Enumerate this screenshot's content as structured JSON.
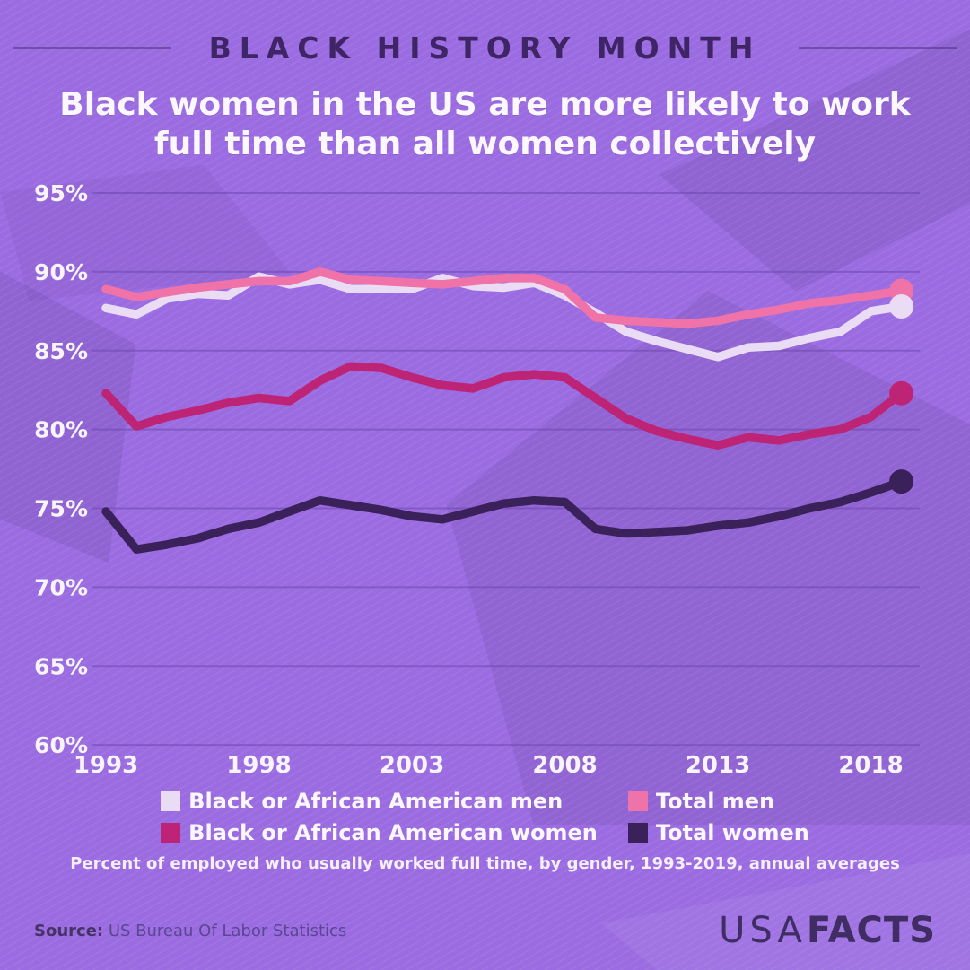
{
  "header": {
    "kicker": "BLACK HISTORY MONTH",
    "title": "Black women in the US are more likely to work full time than all women collectively"
  },
  "theme": {
    "background": "#9b6ce1",
    "ink_dark": "#3f2566",
    "text_light": "#fbf7fe",
    "gridline": "#6d48ae"
  },
  "chart_data": {
    "type": "line",
    "title": "Black women in the US are more likely to work full time than all women collectively",
    "xlabel": "",
    "ylabel": "Percent of employed who usually worked full time",
    "x": [
      1993,
      1994,
      1995,
      1996,
      1997,
      1998,
      1999,
      2000,
      2001,
      2002,
      2003,
      2004,
      2005,
      2006,
      2007,
      2008,
      2009,
      2010,
      2011,
      2012,
      2013,
      2014,
      2015,
      2016,
      2017,
      2018,
      2019
    ],
    "series": [
      {
        "name": "Black or African American men",
        "color": "#eadcf5",
        "values": [
          87.7,
          87.3,
          88.3,
          88.6,
          88.5,
          89.7,
          89.2,
          89.5,
          88.9,
          88.9,
          88.9,
          89.6,
          89.1,
          89.0,
          89.3,
          88.5,
          87.4,
          86.2,
          85.6,
          85.1,
          84.6,
          85.2,
          85.3,
          85.8,
          86.2,
          87.5,
          87.8
        ]
      },
      {
        "name": "Total men",
        "color": "#ef72a8",
        "values": [
          88.9,
          88.4,
          88.7,
          89.0,
          89.2,
          89.4,
          89.4,
          90.0,
          89.5,
          89.4,
          89.3,
          89.2,
          89.4,
          89.6,
          89.6,
          88.9,
          87.1,
          86.9,
          86.8,
          86.7,
          86.9,
          87.3,
          87.6,
          88.0,
          88.2,
          88.5,
          88.8
        ]
      },
      {
        "name": "Black or African American women",
        "color": "#bd2476",
        "values": [
          82.3,
          80.2,
          80.8,
          81.2,
          81.7,
          82.0,
          81.8,
          83.1,
          84.0,
          83.9,
          83.3,
          82.8,
          82.6,
          83.3,
          83.5,
          83.3,
          82.0,
          80.7,
          79.9,
          79.4,
          79.0,
          79.5,
          79.3,
          79.7,
          80.0,
          80.8,
          82.3
        ]
      },
      {
        "name": "Total women",
        "color": "#3b2159",
        "values": [
          74.8,
          72.4,
          72.7,
          73.1,
          73.7,
          74.1,
          74.8,
          75.5,
          75.2,
          74.9,
          74.5,
          74.3,
          74.8,
          75.3,
          75.5,
          75.4,
          73.7,
          73.4,
          73.5,
          73.6,
          73.9,
          74.1,
          74.5,
          75.0,
          75.4,
          76.0,
          76.7
        ]
      }
    ],
    "ylim": [
      60,
      95
    ],
    "yticks": [
      95,
      90,
      85,
      80,
      75,
      70,
      65,
      60
    ],
    "ytick_suffix": "%",
    "xticks": [
      1993,
      1998,
      2003,
      2008,
      2013,
      2018
    ],
    "grid": "horizontal",
    "legend_position": "bottom",
    "end_point_markers": true,
    "caption": "Percent of employed who usually worked full time, by gender, 1993-2019, annual averages"
  },
  "footer": {
    "source_label": "Source:",
    "source_text": "US Bureau Of Labor Statistics",
    "brand_light": "USA",
    "brand_bold": "FACTS"
  }
}
